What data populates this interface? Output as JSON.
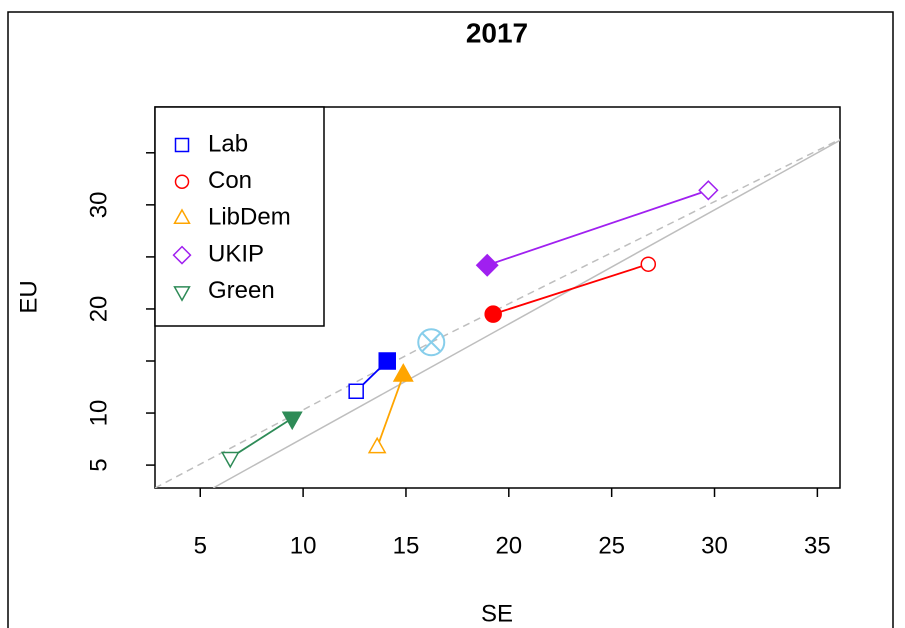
{
  "chart_data": {
    "type": "scatter",
    "title": "2017",
    "x_label": "SE",
    "y_label": "EU",
    "xlim": [
      2.8,
      36.1
    ],
    "ylim": [
      2.8,
      39.4
    ],
    "xticks": [
      5,
      10,
      15,
      20,
      25,
      30,
      35
    ],
    "yticks": [
      5,
      10,
      20,
      30
    ],
    "y_minor_ticks": [
      15,
      25,
      35
    ],
    "series": [
      {
        "name": "Lab",
        "color": "#0000ff",
        "marker": "square",
        "x": [
          12.58,
          14.09
        ],
        "values": [
          12.1,
          15.0
        ]
      },
      {
        "name": "Con",
        "color": "#ff0000",
        "marker": "circle",
        "x": [
          26.78,
          19.24
        ],
        "values": [
          24.3,
          19.5
        ]
      },
      {
        "name": "LibDem",
        "color": "#ffa500",
        "marker": "triangle",
        "x": [
          13.6,
          14.87
        ],
        "values": [
          6.7,
          13.65
        ]
      },
      {
        "name": "UKIP",
        "color": "#a020f0",
        "marker": "diamond",
        "x": [
          29.7,
          18.95
        ],
        "values": [
          31.4,
          24.2
        ]
      },
      {
        "name": "Green",
        "color": "#2e8b57",
        "marker": "triangle-down",
        "x": [
          6.46,
          9.47
        ],
        "values": [
          5.7,
          9.5
        ]
      }
    ],
    "center": {
      "x": 16.23,
      "y": 16.8,
      "color": "#87ceeb"
    },
    "reference_lines": [
      {
        "style": "solid",
        "color": "#bebebe",
        "x": [
          5.63,
          36.1
        ],
        "values": [
          2.8,
          36.2
        ]
      },
      {
        "style": "dashed",
        "color": "#bebebe",
        "x": [
          2.8,
          16.23,
          36.1
        ],
        "values": [
          2.8,
          16.8,
          36.3
        ]
      }
    ],
    "legend": "top-left"
  }
}
